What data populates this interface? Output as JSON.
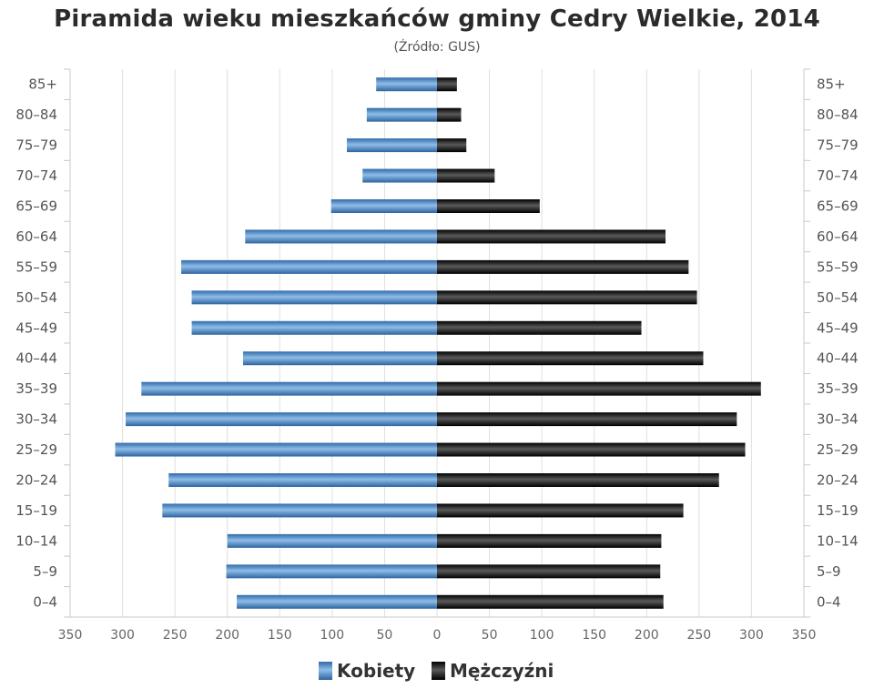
{
  "chart_data": {
    "type": "bar",
    "orientation": "horizontal",
    "title": "Piramida wieku mieszkańców gminy Cedry Wielkie, 2014",
    "subtitle": "(Źródło: GUS)",
    "categories": [
      "0–4",
      "5–9",
      "10–14",
      "15–19",
      "20–24",
      "25–29",
      "30–34",
      "35–39",
      "40–44",
      "45–49",
      "50–54",
      "55–59",
      "60–64",
      "65–69",
      "70–74",
      "75–79",
      "80–84",
      "85+"
    ],
    "series": [
      {
        "name": "Kobiety",
        "color": "#4a87c7",
        "values": [
          191,
          201,
          200,
          262,
          256,
          307,
          297,
          282,
          185,
          234,
          234,
          244,
          183,
          101,
          71,
          86,
          67,
          58
        ]
      },
      {
        "name": "Mężczyźni",
        "color": "#1e1e1e",
        "values": [
          216,
          213,
          214,
          235,
          269,
          294,
          286,
          309,
          254,
          195,
          248,
          240,
          218,
          98,
          55,
          28,
          23,
          19
        ]
      }
    ],
    "xlim": [
      -350,
      350
    ],
    "x_ticks": [
      -350,
      -300,
      -250,
      -200,
      -150,
      -100,
      -50,
      0,
      50,
      100,
      150,
      200,
      250,
      300,
      350
    ],
    "x_tick_labels": [
      "350",
      "300",
      "250",
      "200",
      "150",
      "100",
      "50",
      "0",
      "50",
      "100",
      "150",
      "200",
      "250",
      "300",
      "350"
    ],
    "grid": true,
    "legend": "bottom-center"
  }
}
